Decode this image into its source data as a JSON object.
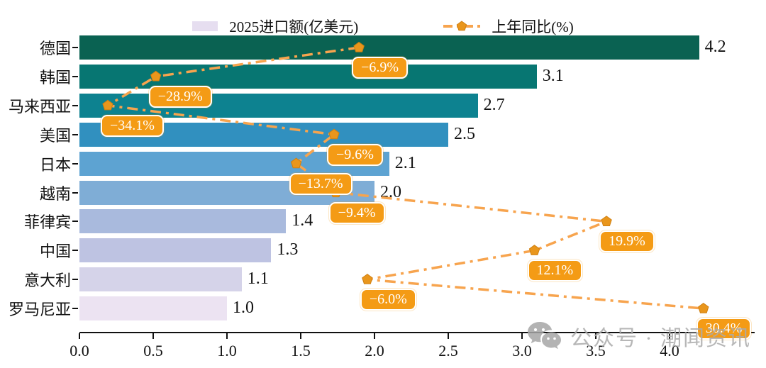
{
  "legend": {
    "bar_label": "2025进口额(亿美元)",
    "line_label": "上年同比(%)"
  },
  "watermark": {
    "text": "公众号 · 潮闻资讯"
  },
  "chart_data": {
    "type": "bar",
    "orientation": "horizontal",
    "title": "",
    "xlabel": "",
    "ylabel": "",
    "grid": false,
    "legend_position": "top-center",
    "categories": [
      "德国",
      "韩国",
      "马来西亚",
      "美国",
      "日本",
      "越南",
      "菲律宾",
      "中国",
      "意大利",
      "罗马尼亚"
    ],
    "series": [
      {
        "name": "2025进口额(亿美元)",
        "type": "bar",
        "values": [
          4.2,
          3.1,
          2.7,
          2.5,
          2.1,
          2.0,
          1.4,
          1.3,
          1.1,
          1.0
        ],
        "value_labels": [
          "4.2",
          "3.1",
          "2.7",
          "2.5",
          "2.1",
          "2.0",
          "1.4",
          "1.3",
          "1.1",
          "1.0"
        ]
      },
      {
        "name": "上年同比(%)",
        "type": "line",
        "values": [
          -6.9,
          -28.9,
          -34.1,
          -9.6,
          -13.7,
          -9.4,
          19.9,
          12.1,
          -6.0,
          30.4
        ],
        "point_labels": [
          "−6.9%",
          "−28.9%",
          "−34.1%",
          "−9.6%",
          "−13.7%",
          "−9.4%",
          "19.9%",
          "12.1%",
          "−6.0%",
          "30.4%"
        ]
      }
    ],
    "x_ticks": [
      "0.0",
      "0.5",
      "1.0",
      "1.5",
      "2.0",
      "2.5",
      "3.0",
      "3.5",
      "4.0"
    ],
    "xlim": [
      0.0,
      4.57
    ],
    "colors": {
      "bars": [
        "#0a6252",
        "#077672",
        "#0d8290",
        "#3190bf",
        "#5da3d2",
        "#7fadd6",
        "#a9badd",
        "#bec3e2",
        "#d5d3e9",
        "#ece3f2"
      ],
      "line": "#f7a44e",
      "marker": "#e9961c",
      "marker_edge": "#cf7f10",
      "annotation_bg": "#f49b15",
      "annotation_text": "#ffffff",
      "axis": "#111111",
      "watermark": "#ababab"
    }
  }
}
